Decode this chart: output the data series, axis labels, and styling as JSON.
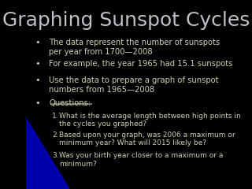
{
  "title": "Graphing Sunspot Cycles",
  "title_fontsize": 18,
  "title_color": "#c0c0c8",
  "background_color": "#000000",
  "bullet_color": "#d0d0b0",
  "bullet_fontsize": 7.2,
  "numbered_fontsize": 6.5,
  "bullets": [
    "The data represent the number of sunspots\nper year from 1700—2008",
    "For example, the year 1965 had 15.1 sunspots",
    "Use the data to prepare a graph of sunspot\nnumbers from 1965—2008",
    "Questions:"
  ],
  "numbered": [
    "What is the average length between high points in\nthe cycles you graphed?",
    "Based upon your graph, was 2006 a maximum or\nminimum year? What will 2015 likely be?",
    "Was your birth year closer to a maximum or a\nminimum?"
  ],
  "blue_shape_color": "#0000aa"
}
